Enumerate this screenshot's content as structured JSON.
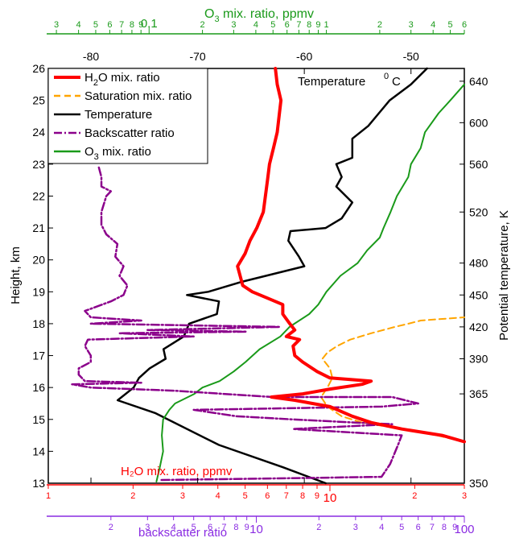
{
  "chart_data": {
    "type": "line",
    "title": "",
    "axes": {
      "height": {
        "label": "Height, km",
        "ylim": [
          13,
          26
        ],
        "ticks": [
          13,
          14,
          15,
          16,
          17,
          18,
          19,
          20,
          21,
          22,
          23,
          24,
          25,
          26
        ]
      },
      "theta": {
        "label": "Potential temperature, K",
        "ticks": [
          {
            "label": "350",
            "h": 13.0
          },
          {
            "label": "365",
            "h": 15.8
          },
          {
            "label": "390",
            "h": 16.9
          },
          {
            "label": "420",
            "h": 17.9
          },
          {
            "label": "450",
            "h": 18.9
          },
          {
            "label": "480",
            "h": 19.9
          },
          {
            "label": "520",
            "h": 21.5
          },
          {
            "label": "560",
            "h": 23.0
          },
          {
            "label": "600",
            "h": 24.3
          },
          {
            "label": "640",
            "h": 25.6
          }
        ]
      },
      "temperature": {
        "label": "Temperature °C",
        "unit": "0",
        "unit_letter": "C",
        "xlim": [
          -84,
          -45
        ],
        "ticks": [
          -80,
          -70,
          -60,
          -50
        ]
      },
      "o3": {
        "label_main": "O",
        "label_sub": "3",
        "label_rest": " mix. ratio, ppmv",
        "scale": "log",
        "xlim": [
          0.027,
          6
        ],
        "ticks": [
          {
            "v": 0.03,
            "t": "3"
          },
          {
            "v": 0.04,
            "t": "4"
          },
          {
            "v": 0.05,
            "t": "5"
          },
          {
            "v": 0.06,
            "t": "6"
          },
          {
            "v": 0.07,
            "t": "7"
          },
          {
            "v": 0.08,
            "t": "8"
          },
          {
            "v": 0.09,
            "t": "9"
          },
          {
            "v": 0.1,
            "t": "0.1"
          },
          {
            "v": 0.2,
            "t": "2"
          },
          {
            "v": 0.3,
            "t": "3"
          },
          {
            "v": 0.4,
            "t": "4"
          },
          {
            "v": 0.5,
            "t": "5"
          },
          {
            "v": 0.6,
            "t": "6"
          },
          {
            "v": 0.7,
            "t": "7"
          },
          {
            "v": 0.8,
            "t": "8"
          },
          {
            "v": 0.9,
            "t": "9"
          },
          {
            "v": 1,
            "t": "1"
          },
          {
            "v": 2,
            "t": "2"
          },
          {
            "v": 3,
            "t": "3"
          },
          {
            "v": 4,
            "t": "4"
          },
          {
            "v": 5,
            "t": "5"
          },
          {
            "v": 6,
            "t": "6"
          }
        ]
      },
      "h2o": {
        "label": "H₂O mix. ratio, ppmv",
        "scale": "log",
        "xlim": [
          1,
          30
        ],
        "ticks": [
          {
            "v": 1,
            "t": "1"
          },
          {
            "v": 2,
            "t": "2"
          },
          {
            "v": 3,
            "t": "3"
          },
          {
            "v": 4,
            "t": "4"
          },
          {
            "v": 5,
            "t": "5"
          },
          {
            "v": 6,
            "t": "6"
          },
          {
            "v": 7,
            "t": "7"
          },
          {
            "v": 8,
            "t": "8"
          },
          {
            "v": 9,
            "t": "9"
          },
          {
            "v": 10,
            "t": "10"
          },
          {
            "v": 20,
            "t": "2"
          },
          {
            "v": 30,
            "t": "3"
          }
        ]
      },
      "backscatter": {
        "label": "backscatter ratio",
        "scale": "log",
        "xlim": [
          1,
          100
        ],
        "ticks": [
          {
            "v": 2,
            "t": "2"
          },
          {
            "v": 3,
            "t": "3"
          },
          {
            "v": 4,
            "t": "4"
          },
          {
            "v": 5,
            "t": "5"
          },
          {
            "v": 6,
            "t": "6"
          },
          {
            "v": 7,
            "t": "7"
          },
          {
            "v": 8,
            "t": "8"
          },
          {
            "v": 9,
            "t": "9"
          },
          {
            "v": 10,
            "t": "10"
          },
          {
            "v": 20,
            "t": "2"
          },
          {
            "v": 30,
            "t": "3"
          },
          {
            "v": 40,
            "t": "4"
          },
          {
            "v": 50,
            "t": "5"
          },
          {
            "v": 60,
            "t": "6"
          },
          {
            "v": 70,
            "t": "7"
          },
          {
            "v": 80,
            "t": "8"
          },
          {
            "v": 90,
            "t": "9"
          },
          {
            "v": 100,
            "t": "100"
          }
        ]
      }
    },
    "legend": {
      "placement": "top-left",
      "entries": [
        {
          "key": "h2o",
          "label_main": "H",
          "label_sub": "2",
          "label_rest": "O mix. ratio",
          "color": "#ff0000",
          "style": "solid"
        },
        {
          "key": "sat",
          "label_main": "Saturation mix. ratio",
          "label_sub": "",
          "label_rest": "",
          "color": "#ffa500",
          "style": "dash"
        },
        {
          "key": "temp",
          "label_main": "Temperature",
          "label_sub": "",
          "label_rest": "",
          "color": "#000000",
          "style": "solid"
        },
        {
          "key": "bsr",
          "label_main": "Backscatter ratio",
          "label_sub": "",
          "label_rest": "",
          "color": "#8b008b",
          "style": "dashdot"
        },
        {
          "key": "o3",
          "label_main": "O",
          "label_sub": "3",
          "label_rest": " mix. ratio",
          "color": "#1a9a1a",
          "style": "solid"
        }
      ]
    },
    "series": [
      {
        "key": "temp",
        "axis": "temperature",
        "color": "#000000",
        "width": 2.5,
        "points": [
          [
            -58,
            13.0
          ],
          [
            -62,
            13.5
          ],
          [
            -68,
            14.2
          ],
          [
            -74,
            15.2
          ],
          [
            -77.5,
            15.6
          ],
          [
            -76,
            16.0
          ],
          [
            -75.5,
            16.3
          ],
          [
            -74.5,
            16.6
          ],
          [
            -73,
            16.9
          ],
          [
            -73.2,
            17.2
          ],
          [
            -71.3,
            17.6
          ],
          [
            -70.8,
            18.0
          ],
          [
            -68.2,
            18.3
          ],
          [
            -68,
            18.7
          ],
          [
            -71,
            18.9
          ],
          [
            -69,
            19.0
          ],
          [
            -66,
            19.3
          ],
          [
            -60,
            19.8
          ],
          [
            -60.5,
            20.1
          ],
          [
            -61.5,
            20.6
          ],
          [
            -61.3,
            20.9
          ],
          [
            -58,
            21.0
          ],
          [
            -56.5,
            21.3
          ],
          [
            -55.5,
            21.8
          ],
          [
            -57,
            22.3
          ],
          [
            -56.5,
            22.6
          ],
          [
            -57,
            23.0
          ],
          [
            -55.5,
            23.2
          ],
          [
            -55.5,
            23.8
          ],
          [
            -54,
            24.2
          ],
          [
            -53,
            24.6
          ],
          [
            -52,
            25.0
          ],
          [
            -50,
            25.5
          ],
          [
            -48.5,
            26.0
          ]
        ]
      },
      {
        "key": "o3",
        "axis": "o3",
        "color": "#1a9a1a",
        "width": 2,
        "points": [
          [
            0.11,
            13.05
          ],
          [
            0.115,
            13.5
          ],
          [
            0.12,
            14.0
          ],
          [
            0.118,
            14.5
          ],
          [
            0.12,
            15.0
          ],
          [
            0.13,
            15.3
          ],
          [
            0.14,
            15.5
          ],
          [
            0.18,
            15.8
          ],
          [
            0.2,
            16.0
          ],
          [
            0.25,
            16.2
          ],
          [
            0.3,
            16.5
          ],
          [
            0.35,
            16.8
          ],
          [
            0.42,
            17.2
          ],
          [
            0.55,
            17.6
          ],
          [
            0.62,
            17.9
          ],
          [
            0.8,
            18.3
          ],
          [
            0.9,
            18.6
          ],
          [
            1.0,
            19.0
          ],
          [
            1.2,
            19.5
          ],
          [
            1.5,
            19.9
          ],
          [
            1.7,
            20.3
          ],
          [
            2.0,
            20.7
          ],
          [
            2.1,
            21.0
          ],
          [
            2.3,
            21.5
          ],
          [
            2.5,
            22.0
          ],
          [
            2.9,
            22.6
          ],
          [
            3.0,
            23.0
          ],
          [
            3.4,
            23.5
          ],
          [
            3.6,
            24.0
          ],
          [
            4.3,
            24.6
          ],
          [
            5.0,
            25.0
          ],
          [
            6.0,
            25.5
          ]
        ]
      },
      {
        "key": "h2o",
        "axis": "h2o",
        "color": "#ff0000",
        "width": 4,
        "points": [
          [
            30,
            14.3
          ],
          [
            25,
            14.5
          ],
          [
            18,
            14.7
          ],
          [
            14,
            14.9
          ],
          [
            12,
            15.1
          ],
          [
            10,
            15.4
          ],
          [
            7.5,
            15.6
          ],
          [
            6.2,
            15.7
          ],
          [
            8,
            15.8
          ],
          [
            10,
            15.95
          ],
          [
            13,
            16.1
          ],
          [
            14,
            16.2
          ],
          [
            10,
            16.3
          ],
          [
            9,
            16.5
          ],
          [
            8,
            16.8
          ],
          [
            7.5,
            17.0
          ],
          [
            7.4,
            17.3
          ],
          [
            7.8,
            17.5
          ],
          [
            7,
            17.6
          ],
          [
            7.5,
            17.8
          ],
          [
            7.2,
            18.0
          ],
          [
            6.8,
            18.3
          ],
          [
            6.8,
            18.6
          ],
          [
            6.0,
            18.8
          ],
          [
            5.3,
            19.0
          ],
          [
            4.9,
            19.2
          ],
          [
            4.8,
            19.5
          ],
          [
            4.7,
            19.8
          ],
          [
            5.0,
            20.2
          ],
          [
            5.2,
            20.6
          ],
          [
            5.5,
            21.0
          ],
          [
            5.8,
            21.5
          ],
          [
            5.9,
            22.0
          ],
          [
            6.0,
            22.5
          ],
          [
            6.1,
            23.0
          ],
          [
            6.3,
            23.5
          ],
          [
            6.5,
            24.0
          ],
          [
            6.6,
            24.5
          ],
          [
            6.7,
            25.0
          ],
          [
            6.5,
            25.5
          ],
          [
            6.4,
            26.0
          ]
        ]
      },
      {
        "key": "sat",
        "axis": "h2o",
        "color": "#ffa500",
        "width": 2,
        "dash": "8,5",
        "points": [
          [
            30,
            14.3
          ],
          [
            24,
            14.5
          ],
          [
            18,
            14.7
          ],
          [
            13,
            14.9
          ],
          [
            11,
            15.1
          ],
          [
            9.8,
            15.4
          ],
          [
            9.3,
            15.7
          ],
          [
            9.8,
            16.0
          ],
          [
            10.2,
            16.3
          ],
          [
            10,
            16.6
          ],
          [
            9.4,
            16.9
          ],
          [
            9.8,
            17.1
          ],
          [
            10.6,
            17.3
          ],
          [
            11.8,
            17.5
          ],
          [
            14,
            17.7
          ],
          [
            17,
            17.9
          ],
          [
            19,
            18.0
          ],
          [
            21,
            18.1
          ],
          [
            30,
            18.2
          ]
        ]
      },
      {
        "key": "bsr",
        "axis": "backscatter",
        "color": "#8b008b",
        "width": 2.5,
        "dash": "10,3,2,3",
        "points": [
          [
            3.5,
            13.1
          ],
          [
            12,
            13.15
          ],
          [
            40,
            13.2
          ],
          [
            44,
            13.6
          ],
          [
            48,
            14.2
          ],
          [
            50,
            14.5
          ],
          [
            15,
            14.7
          ],
          [
            45,
            14.85
          ],
          [
            30,
            14.9
          ],
          [
            15,
            15.0
          ],
          [
            8,
            15.1
          ],
          [
            5,
            15.3
          ],
          [
            40,
            15.4
          ],
          [
            60,
            15.5
          ],
          [
            45,
            15.7
          ],
          [
            12,
            15.7
          ],
          [
            4,
            15.9
          ],
          [
            1.6,
            16.0
          ],
          [
            1.3,
            16.1
          ],
          [
            2.8,
            16.15
          ],
          [
            1.5,
            16.2
          ],
          [
            1.4,
            16.4
          ],
          [
            1.4,
            16.6
          ],
          [
            1.6,
            16.8
          ],
          [
            1.6,
            17.0
          ],
          [
            1.5,
            17.3
          ],
          [
            1.55,
            17.5
          ],
          [
            5,
            17.6
          ],
          [
            2.2,
            17.7
          ],
          [
            9,
            17.75
          ],
          [
            3,
            17.8
          ],
          [
            13,
            17.9
          ],
          [
            1.6,
            18.0
          ],
          [
            2.8,
            18.1
          ],
          [
            1.6,
            18.2
          ],
          [
            1.5,
            18.4
          ],
          [
            2.0,
            18.7
          ],
          [
            2.3,
            18.9
          ],
          [
            2.4,
            19.2
          ],
          [
            2.2,
            19.5
          ],
          [
            2.3,
            19.8
          ],
          [
            2.1,
            20.1
          ],
          [
            2.15,
            20.5
          ],
          [
            1.9,
            20.8
          ],
          [
            1.8,
            21.1
          ],
          [
            1.8,
            21.5
          ],
          [
            1.9,
            22.0
          ],
          [
            2.0,
            22.15
          ],
          [
            1.8,
            22.3
          ],
          [
            1.8,
            22.6
          ],
          [
            1.75,
            22.9
          ]
        ]
      }
    ]
  }
}
